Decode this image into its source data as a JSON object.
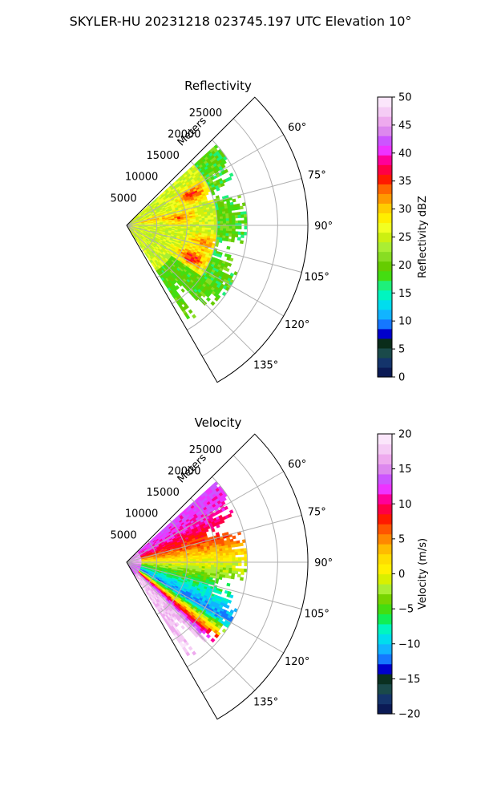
{
  "page_title": "SKYLER-HU  20231218  023745.197 UTC Elevation 10°",
  "chart_data": [
    {
      "type": "heatmap",
      "title": "Reflectivity",
      "projection": "polar-sector",
      "angle_range_deg": [
        45,
        150
      ],
      "r_max_m": 30000,
      "data_extent_m": 20000,
      "range_ticks": [
        "5000",
        "10000",
        "15000",
        "20000",
        "25000"
      ],
      "range_tick_values": [
        5000,
        10000,
        15000,
        20000,
        25000
      ],
      "range_axis_label": "Meters",
      "angle_tick_labels": [
        "60°",
        "75°",
        "90°",
        "105°",
        "120°",
        "135°"
      ],
      "angle_tick_values": [
        60,
        75,
        90,
        105,
        120,
        135
      ],
      "grid": true,
      "colorbar": {
        "label": "Reflectivity dBZ",
        "range": [
          0,
          50
        ],
        "ticks": [
          "0",
          "5",
          "10",
          "15",
          "20",
          "25",
          "30",
          "35",
          "40",
          "45",
          "50"
        ],
        "tick_values": [
          0,
          5,
          10,
          15,
          20,
          25,
          30,
          35,
          40,
          45,
          50
        ]
      },
      "field": {
        "base": 25,
        "cores": [
          {
            "angle": 65,
            "range": 12000,
            "value": 35
          },
          {
            "angle": 82,
            "range": 9000,
            "value": 33
          },
          {
            "angle": 103,
            "range": 13000,
            "value": 32
          },
          {
            "angle": 117,
            "range": 12000,
            "value": 36
          },
          {
            "angle": 78,
            "range": 4000,
            "value": 31
          }
        ],
        "outer_value": 19
      }
    },
    {
      "type": "heatmap",
      "title": "Velocity",
      "projection": "polar-sector",
      "angle_range_deg": [
        45,
        150
      ],
      "r_max_m": 30000,
      "data_extent_m": 20000,
      "range_ticks": [
        "5000",
        "10000",
        "15000",
        "20000",
        "25000"
      ],
      "range_tick_values": [
        5000,
        10000,
        15000,
        20000,
        25000
      ],
      "range_axis_label": "Meters",
      "angle_tick_labels": [
        "60°",
        "75°",
        "90°",
        "105°",
        "120°",
        "135°"
      ],
      "angle_tick_values": [
        60,
        75,
        90,
        105,
        120,
        135
      ],
      "grid": true,
      "colorbar": {
        "label": "Velocity (m/s)",
        "range": [
          -20,
          20
        ],
        "ticks": [
          "−20",
          "−15",
          "−10",
          "−5",
          "0",
          "5",
          "10",
          "15",
          "20"
        ],
        "tick_values": [
          -20,
          -15,
          -10,
          -5,
          0,
          5,
          10,
          15,
          20
        ]
      },
      "field": {
        "near_angle_60_value": 12,
        "near_angle_90_value": 0,
        "near_angle_105_value": -6,
        "near_angle_120_value": -12,
        "near_angle_135_value": 17
      }
    }
  ],
  "colors": {
    "reflectivity_cmap": [
      "#0b1a55",
      "#14346b",
      "#1a4a4a",
      "#0a2c1a",
      "#0000cc",
      "#1577ff",
      "#11b4ff",
      "#00ddee",
      "#00f5c0",
      "#1ef07a",
      "#44dd11",
      "#66cc00",
      "#88dd22",
      "#aaee33",
      "#ccf011",
      "#f2ff22",
      "#ffee00",
      "#ffcc00",
      "#ff9900",
      "#ff6600",
      "#ff1a00",
      "#ff0044",
      "#ff0099",
      "#ee33ff",
      "#cc55ff",
      "#dd88ee",
      "#eeaaee",
      "#f5ccf5",
      "#fbe6fb"
    ],
    "velocity_cmap": [
      "#0b1a55",
      "#14346b",
      "#1a4a4a",
      "#0a3020",
      "#0000cc",
      "#1577ff",
      "#11b4ff",
      "#00ddee",
      "#00f5c0",
      "#11ee55",
      "#44dd11",
      "#77d400",
      "#aaee33",
      "#d8f000",
      "#fff000",
      "#ffdd00",
      "#ffbb00",
      "#ff8800",
      "#ff5500",
      "#ff1a00",
      "#ff0044",
      "#ff0099",
      "#ee33ff",
      "#cc55ff",
      "#dd88ee",
      "#eeaaee",
      "#f5ccf5",
      "#fbe6fb"
    ]
  }
}
